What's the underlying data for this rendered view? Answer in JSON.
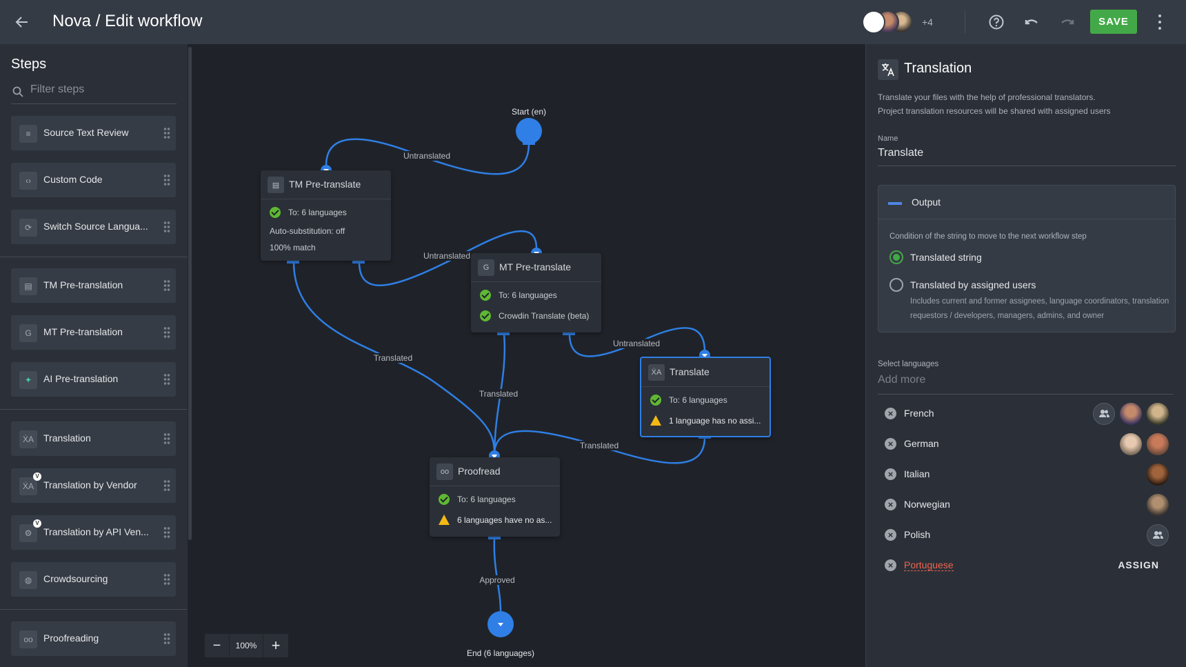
{
  "header": {
    "title": "Nova / Edit workflow",
    "extra_collaborators": "+4",
    "save_label": "SAVE"
  },
  "sidebar": {
    "title": "Steps",
    "filter_placeholder": "Filter steps",
    "items": [
      {
        "label": "Source Text Review",
        "icon": "source-review-icon"
      },
      {
        "label": "Custom Code",
        "icon": "code-icon"
      },
      {
        "label": "Switch Source Langua...",
        "icon": "switch-icon"
      },
      {
        "label": "TM Pre-translation",
        "icon": "tm-icon"
      },
      {
        "label": "MT Pre-translation",
        "icon": "mt-icon"
      },
      {
        "label": "AI Pre-translation",
        "icon": "ai-icon"
      },
      {
        "label": "Translation",
        "icon": "translate-icon"
      },
      {
        "label": "Translation by Vendor",
        "icon": "translate-icon",
        "badge": "V"
      },
      {
        "label": "Translation by API Ven...",
        "icon": "gear-icon",
        "badge": "V"
      },
      {
        "label": "Crowdsourcing",
        "icon": "globe-icon"
      },
      {
        "label": "Proofreading",
        "icon": "glasses-icon"
      }
    ]
  },
  "canvas": {
    "start_label": "Start (en)",
    "end_label": "End (6 languages)",
    "zoom": "100%",
    "nodes": {
      "tm": {
        "title": "TM Pre-translate",
        "rows": [
          "To: 6 languages",
          "Auto-substitution: off",
          "100% match"
        ]
      },
      "mt": {
        "title": "MT Pre-translate",
        "rows": [
          "To: 6 languages",
          "Crowdin Translate (beta)"
        ]
      },
      "translate": {
        "title": "Translate",
        "rows": [
          "To: 6 languages",
          "1 language has no assi..."
        ]
      },
      "proofread": {
        "title": "Proofread",
        "rows": [
          "To: 6 languages",
          "6 languages have no as..."
        ]
      }
    },
    "edges": {
      "start_tm": "Untranslated",
      "tm_mt": "Untranslated",
      "tm_proof": "Translated",
      "mt_proof": "Translated",
      "mt_translate": "Untranslated",
      "translate_proof": "Translated",
      "proof_end": "Approved"
    },
    "accent": "#2f7fe6"
  },
  "panel": {
    "title": "Translation",
    "description_1": "Translate your files with the help of professional translators.",
    "description_2": "Project translation resources will be shared with assigned users",
    "name_label": "Name",
    "name_value": "Translate",
    "output": {
      "title": "Output",
      "condition": "Condition of the string to move to the next workflow step",
      "option_1": "Translated string",
      "option_2": "Translated by assigned users",
      "option_2_help": "Includes current and former assignees, language coordinators, translation requestors / developers, managers, admins, and owner",
      "selected": "Translated string"
    },
    "select_languages_label": "Select languages",
    "add_more_placeholder": "Add more",
    "languages": [
      {
        "name": "French"
      },
      {
        "name": "German"
      },
      {
        "name": "Italian"
      },
      {
        "name": "Norwegian"
      },
      {
        "name": "Polish"
      },
      {
        "name": "Portuguese",
        "error": true,
        "action": "ASSIGN"
      }
    ]
  }
}
